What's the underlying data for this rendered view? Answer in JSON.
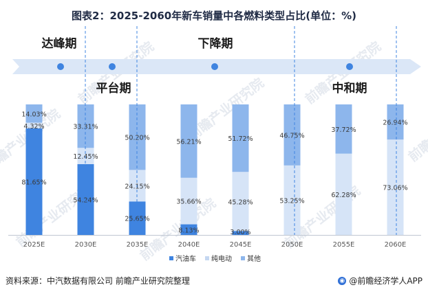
{
  "title": "图表2：2025-2060年新车销量中各燃料类型占比(单位：%)",
  "phases": [
    {
      "label": "达峰期"
    },
    {
      "label": "平台期"
    },
    {
      "label": "下降期"
    },
    {
      "label": "中和期"
    }
  ],
  "watermark": "前瞻产业研究院",
  "chart_data": {
    "type": "bar",
    "stacked": true,
    "categories": [
      "2025E",
      "2030E",
      "2035E",
      "2040E",
      "2045E",
      "2050E",
      "2055E",
      "2060E"
    ],
    "series": [
      {
        "name": "汽油车",
        "values": [
          81.65,
          54.24,
          25.65,
          8.13,
          3.0,
          0,
          0,
          0
        ],
        "color": "#3f84e0"
      },
      {
        "name": "纯电动",
        "values": [
          4.32,
          12.45,
          24.15,
          35.66,
          45.28,
          53.25,
          62.28,
          73.06
        ],
        "color": "#d6e4f7"
      },
      {
        "name": "其他",
        "values": [
          14.03,
          33.31,
          50.2,
          56.21,
          51.72,
          46.75,
          37.72,
          26.94
        ],
        "color": "#8db6ec"
      }
    ],
    "labels": [
      [
        "81.65%",
        "54.24%",
        "25.65%",
        "8.13%",
        "3.00%",
        "",
        "",
        ""
      ],
      [
        "4.32%",
        "12.45%",
        "24.15%",
        "35.66%",
        "45.28%",
        "53.25%",
        "62.28%",
        "73.06%"
      ],
      [
        "14.03%",
        "33.31%",
        "50.20%",
        "56.21%",
        "51.72%",
        "46.75%",
        "37.72%",
        "26.94%"
      ]
    ],
    "ylim": [
      0,
      100
    ],
    "legend_position": "bottom-center",
    "grid": false
  },
  "footer": {
    "source": "资料来源：中汽数据有限公司 前瞻产业研究院整理",
    "brand": "@前瞻经济学人APP"
  }
}
